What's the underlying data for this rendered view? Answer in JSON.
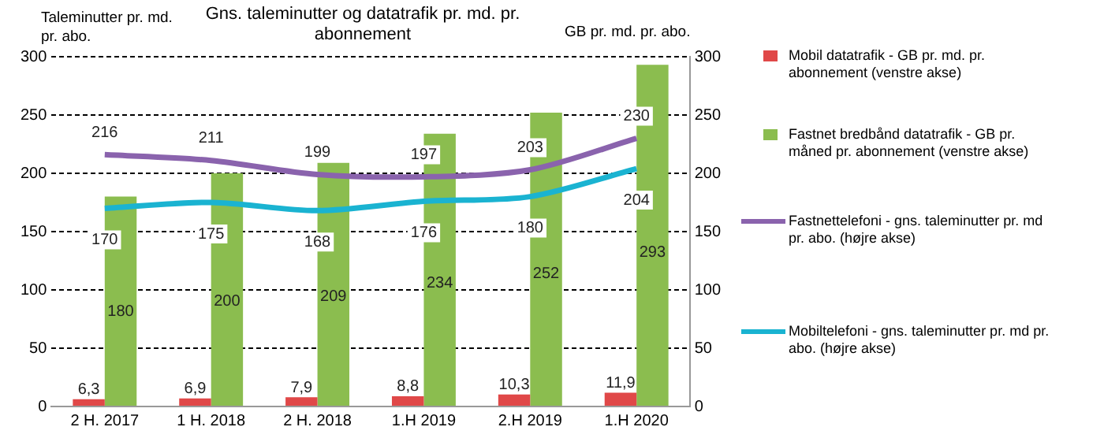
{
  "chart_data": {
    "type": "bar",
    "title": "Gns. taleminutter og datatrafik pr. md. pr. abonnement",
    "ylabel": "Taleminutter pr. md. pr. abo.",
    "y2label": "GB pr. md. pr. abo.",
    "categories": [
      "2 H. 2017",
      "1 H. 2018",
      "2 H. 2018",
      "1.H 2019",
      "2.H 2019",
      "1.H 2020"
    ],
    "series": [
      {
        "name": "Mobil datatrafik - GB pr. md. pr. abonnement (venstre akse)",
        "color": "#e04848",
        "values": [
          6.3,
          6.9,
          7.9,
          8.8,
          10.3,
          11.9
        ],
        "value_labels": [
          "6,3",
          "6,9",
          "7,9",
          "8,8",
          "10,3",
          "11,9"
        ]
      },
      {
        "name": "Fastnet bredbånd datatrafik - GB pr. måned pr. abonnement (venstre akse)",
        "color": "#8bbd4f",
        "values": [
          180,
          200,
          209,
          234,
          252,
          293
        ],
        "value_labels": [
          "180",
          "200",
          "209",
          "234",
          "252",
          "293"
        ]
      },
      {
        "name": "Fastnettelefoni - gns. taleminutter pr. md pr. abo. (højre akse)",
        "type": "line",
        "axis": "y2",
        "color": "#8a63ad",
        "values": [
          216,
          211,
          199,
          197,
          203,
          230
        ],
        "value_labels": [
          "216",
          "211",
          "199",
          "197",
          "203",
          "230"
        ]
      },
      {
        "name": "Mobiltelefoni - gns. taleminutter pr. md pr. abo. (højre akse)",
        "type": "line",
        "axis": "y2",
        "color": "#1ab3d1",
        "values": [
          170,
          175,
          168,
          176,
          180,
          204
        ],
        "value_labels": [
          "170",
          "175",
          "168",
          "176",
          "180",
          "204"
        ]
      }
    ],
    "ylim": [
      0,
      300
    ],
    "yticks": [
      0,
      50,
      100,
      150,
      200,
      250,
      300
    ],
    "y2lim": [
      0,
      300
    ],
    "y2ticks": [
      0,
      50,
      100,
      150,
      200,
      250,
      300
    ],
    "grid": "y",
    "legend": "right",
    "marker": "none"
  }
}
